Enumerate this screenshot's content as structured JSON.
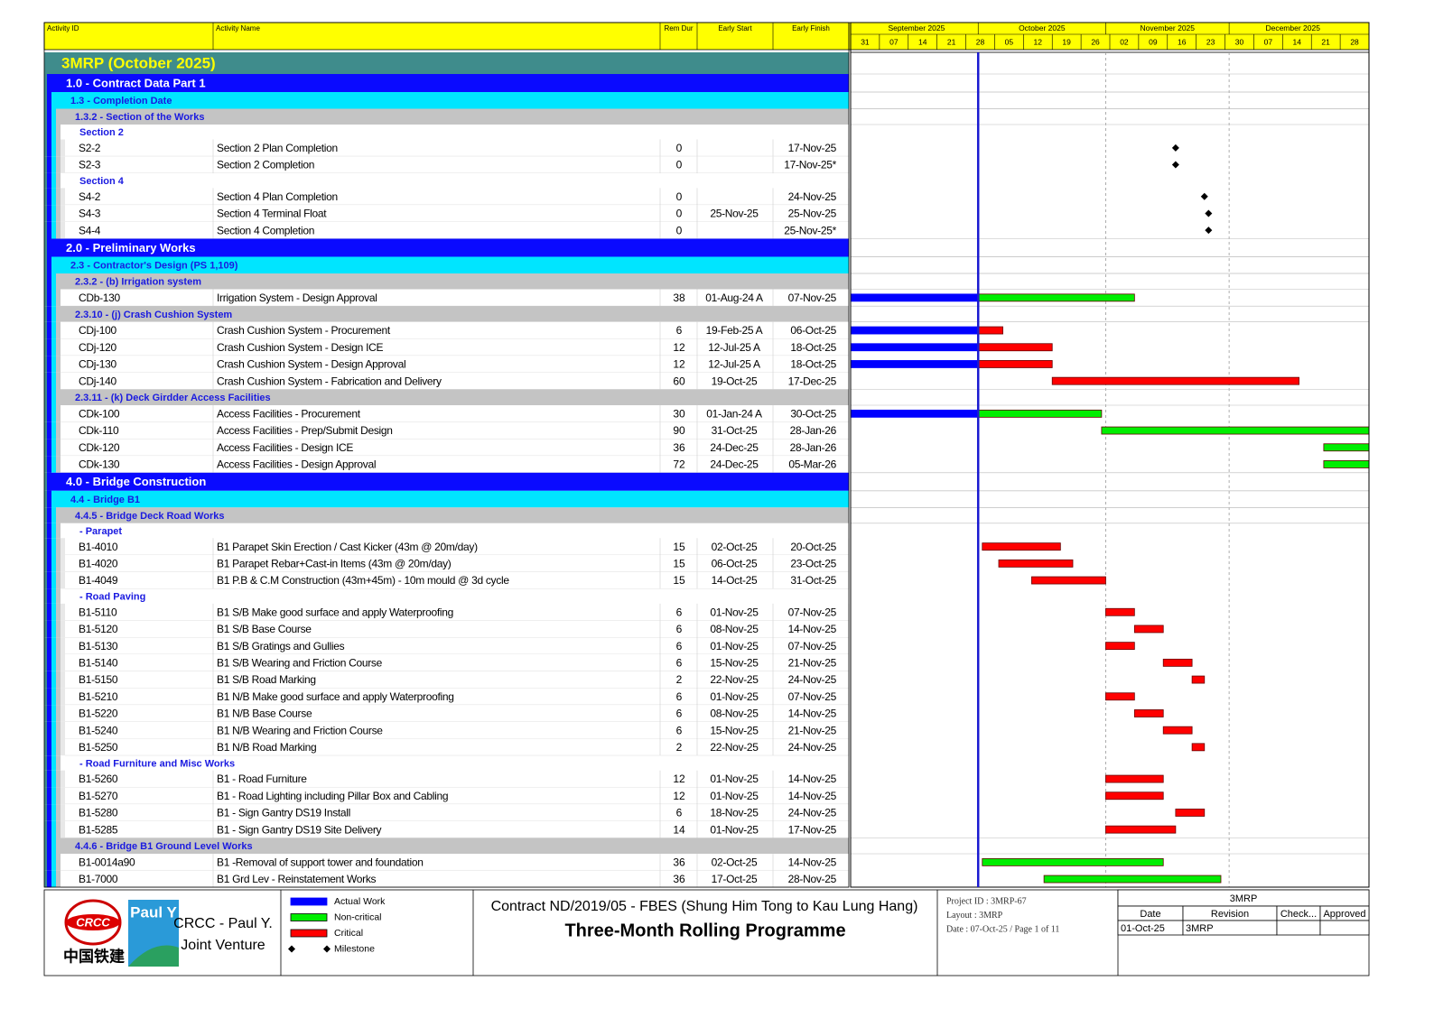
{
  "header": {
    "columns": [
      "Activity ID",
      "Activity Name",
      "Rem Dur",
      "Early Start",
      "Early Finish"
    ],
    "months": [
      "September 2025",
      "October 2025",
      "November 2025",
      "December 2025"
    ],
    "weeks": [
      "31",
      "07",
      "14",
      "21",
      "28",
      "05",
      "12",
      "19",
      "26",
      "02",
      "09",
      "16",
      "23",
      "30",
      "07",
      "14",
      "21",
      "28"
    ]
  },
  "programme": {
    "label": "3MRP (October 2025)",
    "groups": [
      {
        "label": "1.0 - Contract Data Part 1",
        "groups": [
          {
            "label": "1.3 - Completion Date",
            "groups": [
              {
                "label": "1.3.2 - Section of the Works",
                "groups": [
                  {
                    "label": "Section 2",
                    "activities": [
                      {
                        "id": "S2-2",
                        "name": "Section 2 Plan Completion",
                        "dur": 0,
                        "finish": "17-Nov-25",
                        "kind": "Milestone"
                      },
                      {
                        "id": "S2-3",
                        "name": "Section 2 Completion",
                        "dur": 0,
                        "finish": "17-Nov-25*",
                        "kind": "Milestone"
                      }
                    ]
                  },
                  {
                    "label": "Section 4",
                    "activities": [
                      {
                        "id": "S4-2",
                        "name": "Section 4 Plan Completion",
                        "dur": 0,
                        "finish": "24-Nov-25",
                        "kind": "Milestone"
                      },
                      {
                        "id": "S4-3",
                        "name": "Section 4 Terminal Float",
                        "dur": 0,
                        "start": "25-Nov-25",
                        "finish": "25-Nov-25",
                        "kind": "Milestone"
                      },
                      {
                        "id": "S4-4",
                        "name": "Section 4 Completion",
                        "dur": 0,
                        "finish": "25-Nov-25*",
                        "kind": "Milestone"
                      }
                    ]
                  }
                ]
              }
            ]
          }
        ]
      },
      {
        "label": "2.0 - Preliminary Works",
        "groups": [
          {
            "label": "2.3 - Contractor's Design (PS 1,109)",
            "groups": [
              {
                "label": "2.3.2 - (b) Irrigation system",
                "activities": [
                  {
                    "id": "CDb-130",
                    "name": "Irrigation System - Design Approval",
                    "dur": 38,
                    "start": "01-Aug-24 A",
                    "finish": "07-Nov-25",
                    "kind": "Non-critical"
                  }
                ]
              },
              {
                "label": "2.3.10 - (j) Crash Cushion System",
                "activities": [
                  {
                    "id": "CDj-100",
                    "name": "Crash Cushion System - Procurement",
                    "dur": 6,
                    "start": "19-Feb-25 A",
                    "finish": "06-Oct-25",
                    "kind": "Critical"
                  },
                  {
                    "id": "CDj-120",
                    "name": "Crash Cushion System -  Design ICE",
                    "dur": 12,
                    "start": "12-Jul-25 A",
                    "finish": "18-Oct-25",
                    "kind": "Critical"
                  },
                  {
                    "id": "CDj-130",
                    "name": "Crash Cushion System - Design Approval",
                    "dur": 12,
                    "start": "12-Jul-25 A",
                    "finish": "18-Oct-25",
                    "kind": "Critical"
                  },
                  {
                    "id": "CDj-140",
                    "name": "Crash Cushion System - Fabrication and Delivery",
                    "dur": 60,
                    "start": "19-Oct-25",
                    "finish": "17-Dec-25",
                    "kind": "Critical"
                  }
                ]
              },
              {
                "label": "2.3.11 - (k) Deck Girdder Access Facilities",
                "activities": [
                  {
                    "id": "CDk-100",
                    "name": "Access Facilities - Procurement",
                    "dur": 30,
                    "start": "01-Jan-24 A",
                    "finish": "30-Oct-25",
                    "kind": "Non-critical"
                  },
                  {
                    "id": "CDk-110",
                    "name": "Access Facilities - Prep/Submit Design",
                    "dur": 90,
                    "start": "31-Oct-25",
                    "finish": "28-Jan-26",
                    "kind": "Non-critical"
                  },
                  {
                    "id": "CDk-120",
                    "name": "Access Facilities -  Design ICE",
                    "dur": 36,
                    "start": "24-Dec-25",
                    "finish": "28-Jan-26",
                    "kind": "Non-critical"
                  },
                  {
                    "id": "CDk-130",
                    "name": "Access Facilities - Design Approval",
                    "dur": 72,
                    "start": "24-Dec-25",
                    "finish": "05-Mar-26",
                    "kind": "Non-critical"
                  }
                ]
              }
            ]
          }
        ]
      },
      {
        "label": "4.0 - Bridge Construction",
        "groups": [
          {
            "label": "4.4 - Bridge B1",
            "groups": [
              {
                "label": "4.4.5 - Bridge Deck Road Works",
                "groups": [
                  {
                    "label": "- Parapet",
                    "activities": [
                      {
                        "id": "B1-4010",
                        "name": "B1 Parapet Skin Erection / Cast Kicker (43m @ 20m/day)",
                        "dur": 15,
                        "start": "02-Oct-25",
                        "finish": "20-Oct-25",
                        "kind": "Critical"
                      },
                      {
                        "id": "B1-4020",
                        "name": "B1 Parapet Rebar+Cast-in Items (43m @ 20m/day)",
                        "dur": 15,
                        "start": "06-Oct-25",
                        "finish": "23-Oct-25",
                        "kind": "Critical"
                      },
                      {
                        "id": "B1-4049",
                        "name": "B1 P.B & C.M Construction (43m+45m) - 10m mould @ 3d cycle",
                        "dur": 15,
                        "start": "14-Oct-25",
                        "finish": "31-Oct-25",
                        "kind": "Critical"
                      }
                    ]
                  },
                  {
                    "label": "- Road Paving",
                    "activities": [
                      {
                        "id": "B1-5110",
                        "name": "B1 S/B Make good surface and apply Waterproofing",
                        "dur": 6,
                        "start": "01-Nov-25",
                        "finish": "07-Nov-25",
                        "kind": "Critical"
                      },
                      {
                        "id": "B1-5120",
                        "name": "B1 S/B Base Course",
                        "dur": 6,
                        "start": "08-Nov-25",
                        "finish": "14-Nov-25",
                        "kind": "Critical"
                      },
                      {
                        "id": "B1-5130",
                        "name": "B1 S/B Gratings and Gullies",
                        "dur": 6,
                        "start": "01-Nov-25",
                        "finish": "07-Nov-25",
                        "kind": "Critical"
                      },
                      {
                        "id": "B1-5140",
                        "name": "B1 S/B Wearing and Friction Course",
                        "dur": 6,
                        "start": "15-Nov-25",
                        "finish": "21-Nov-25",
                        "kind": "Critical"
                      },
                      {
                        "id": "B1-5150",
                        "name": "B1 S/B Road Marking",
                        "dur": 2,
                        "start": "22-Nov-25",
                        "finish": "24-Nov-25",
                        "kind": "Critical"
                      },
                      {
                        "id": "B1-5210",
                        "name": "B1 N/B Make good surface and apply Waterproofing",
                        "dur": 6,
                        "start": "01-Nov-25",
                        "finish": "07-Nov-25",
                        "kind": "Critical"
                      },
                      {
                        "id": "B1-5220",
                        "name": "B1 N/B Base Course",
                        "dur": 6,
                        "start": "08-Nov-25",
                        "finish": "14-Nov-25",
                        "kind": "Critical"
                      },
                      {
                        "id": "B1-5240",
                        "name": "B1 N/B Wearing and Friction Course",
                        "dur": 6,
                        "start": "15-Nov-25",
                        "finish": "21-Nov-25",
                        "kind": "Critical"
                      },
                      {
                        "id": "B1-5250",
                        "name": "B1 N/B Road Marking",
                        "dur": 2,
                        "start": "22-Nov-25",
                        "finish": "24-Nov-25",
                        "kind": "Critical"
                      }
                    ]
                  },
                  {
                    "label": "- Road Furniture and Misc Works",
                    "activities": [
                      {
                        "id": "B1-5260",
                        "name": "B1 - Road Furniture",
                        "dur": 12,
                        "start": "01-Nov-25",
                        "finish": "14-Nov-25",
                        "kind": "Critical"
                      },
                      {
                        "id": "B1-5270",
                        "name": "B1 - Road Lighting including Pillar Box and Cabling",
                        "dur": 12,
                        "start": "01-Nov-25",
                        "finish": "14-Nov-25",
                        "kind": "Critical"
                      },
                      {
                        "id": "B1-5280",
                        "name": "B1 - Sign Gantry DS19 Install",
                        "dur": 6,
                        "start": "18-Nov-25",
                        "finish": "24-Nov-25",
                        "kind": "Critical"
                      },
                      {
                        "id": "B1-5285",
                        "name": "B1 - Sign Gantry DS19 Site Delivery",
                        "dur": 14,
                        "start": "01-Nov-25",
                        "finish": "17-Nov-25",
                        "kind": "Critical"
                      }
                    ]
                  }
                ]
              },
              {
                "label": "4.4.6 - Bridge B1 Ground Level Works",
                "activities": [
                  {
                    "id": "B1-0014a90",
                    "name": "B1 -Removal of support tower and foundation",
                    "dur": 36,
                    "start": "02-Oct-25",
                    "finish": "14-Nov-25",
                    "kind": "Non-critical"
                  },
                  {
                    "id": "B1-7000",
                    "name": "B1 Grd Lev - Reinstatement Works",
                    "dur": 36,
                    "start": "17-Oct-25",
                    "finish": "28-Nov-25",
                    "kind": "Non-critical"
                  }
                ]
              }
            ]
          }
        ]
      }
    ]
  },
  "legend": [
    {
      "label": "Actual Work",
      "color": "#0000ff"
    },
    {
      "label": "Non-critical",
      "color": "#00ee00"
    },
    {
      "label": "Critical",
      "color": "#ff0000"
    },
    {
      "label": "Milestone",
      "color": "#000000"
    }
  ],
  "footer": {
    "logo": {
      "crcc": "CRCC",
      "chinese": "中国铁建",
      "pauly": "Paul Y",
      "company": [
        "CRCC - Paul Y.",
        "Joint Venture"
      ]
    },
    "title": "Contract ND/2019/05 - FBES (Shung Him Tong to Kau Lung Hang)",
    "subtitle": "Three-Month Rolling Programme",
    "info": [
      "Project ID : 3MRP-67",
      "Layout : 3MRP",
      "Date : 07-Oct-25  / Page 1 of  11"
    ],
    "revision": {
      "title": "3MRP",
      "headers": [
        "Date",
        "Revision",
        "Check...",
        "Approved"
      ],
      "row": [
        "01-Oct-25",
        "3MRP"
      ]
    }
  }
}
